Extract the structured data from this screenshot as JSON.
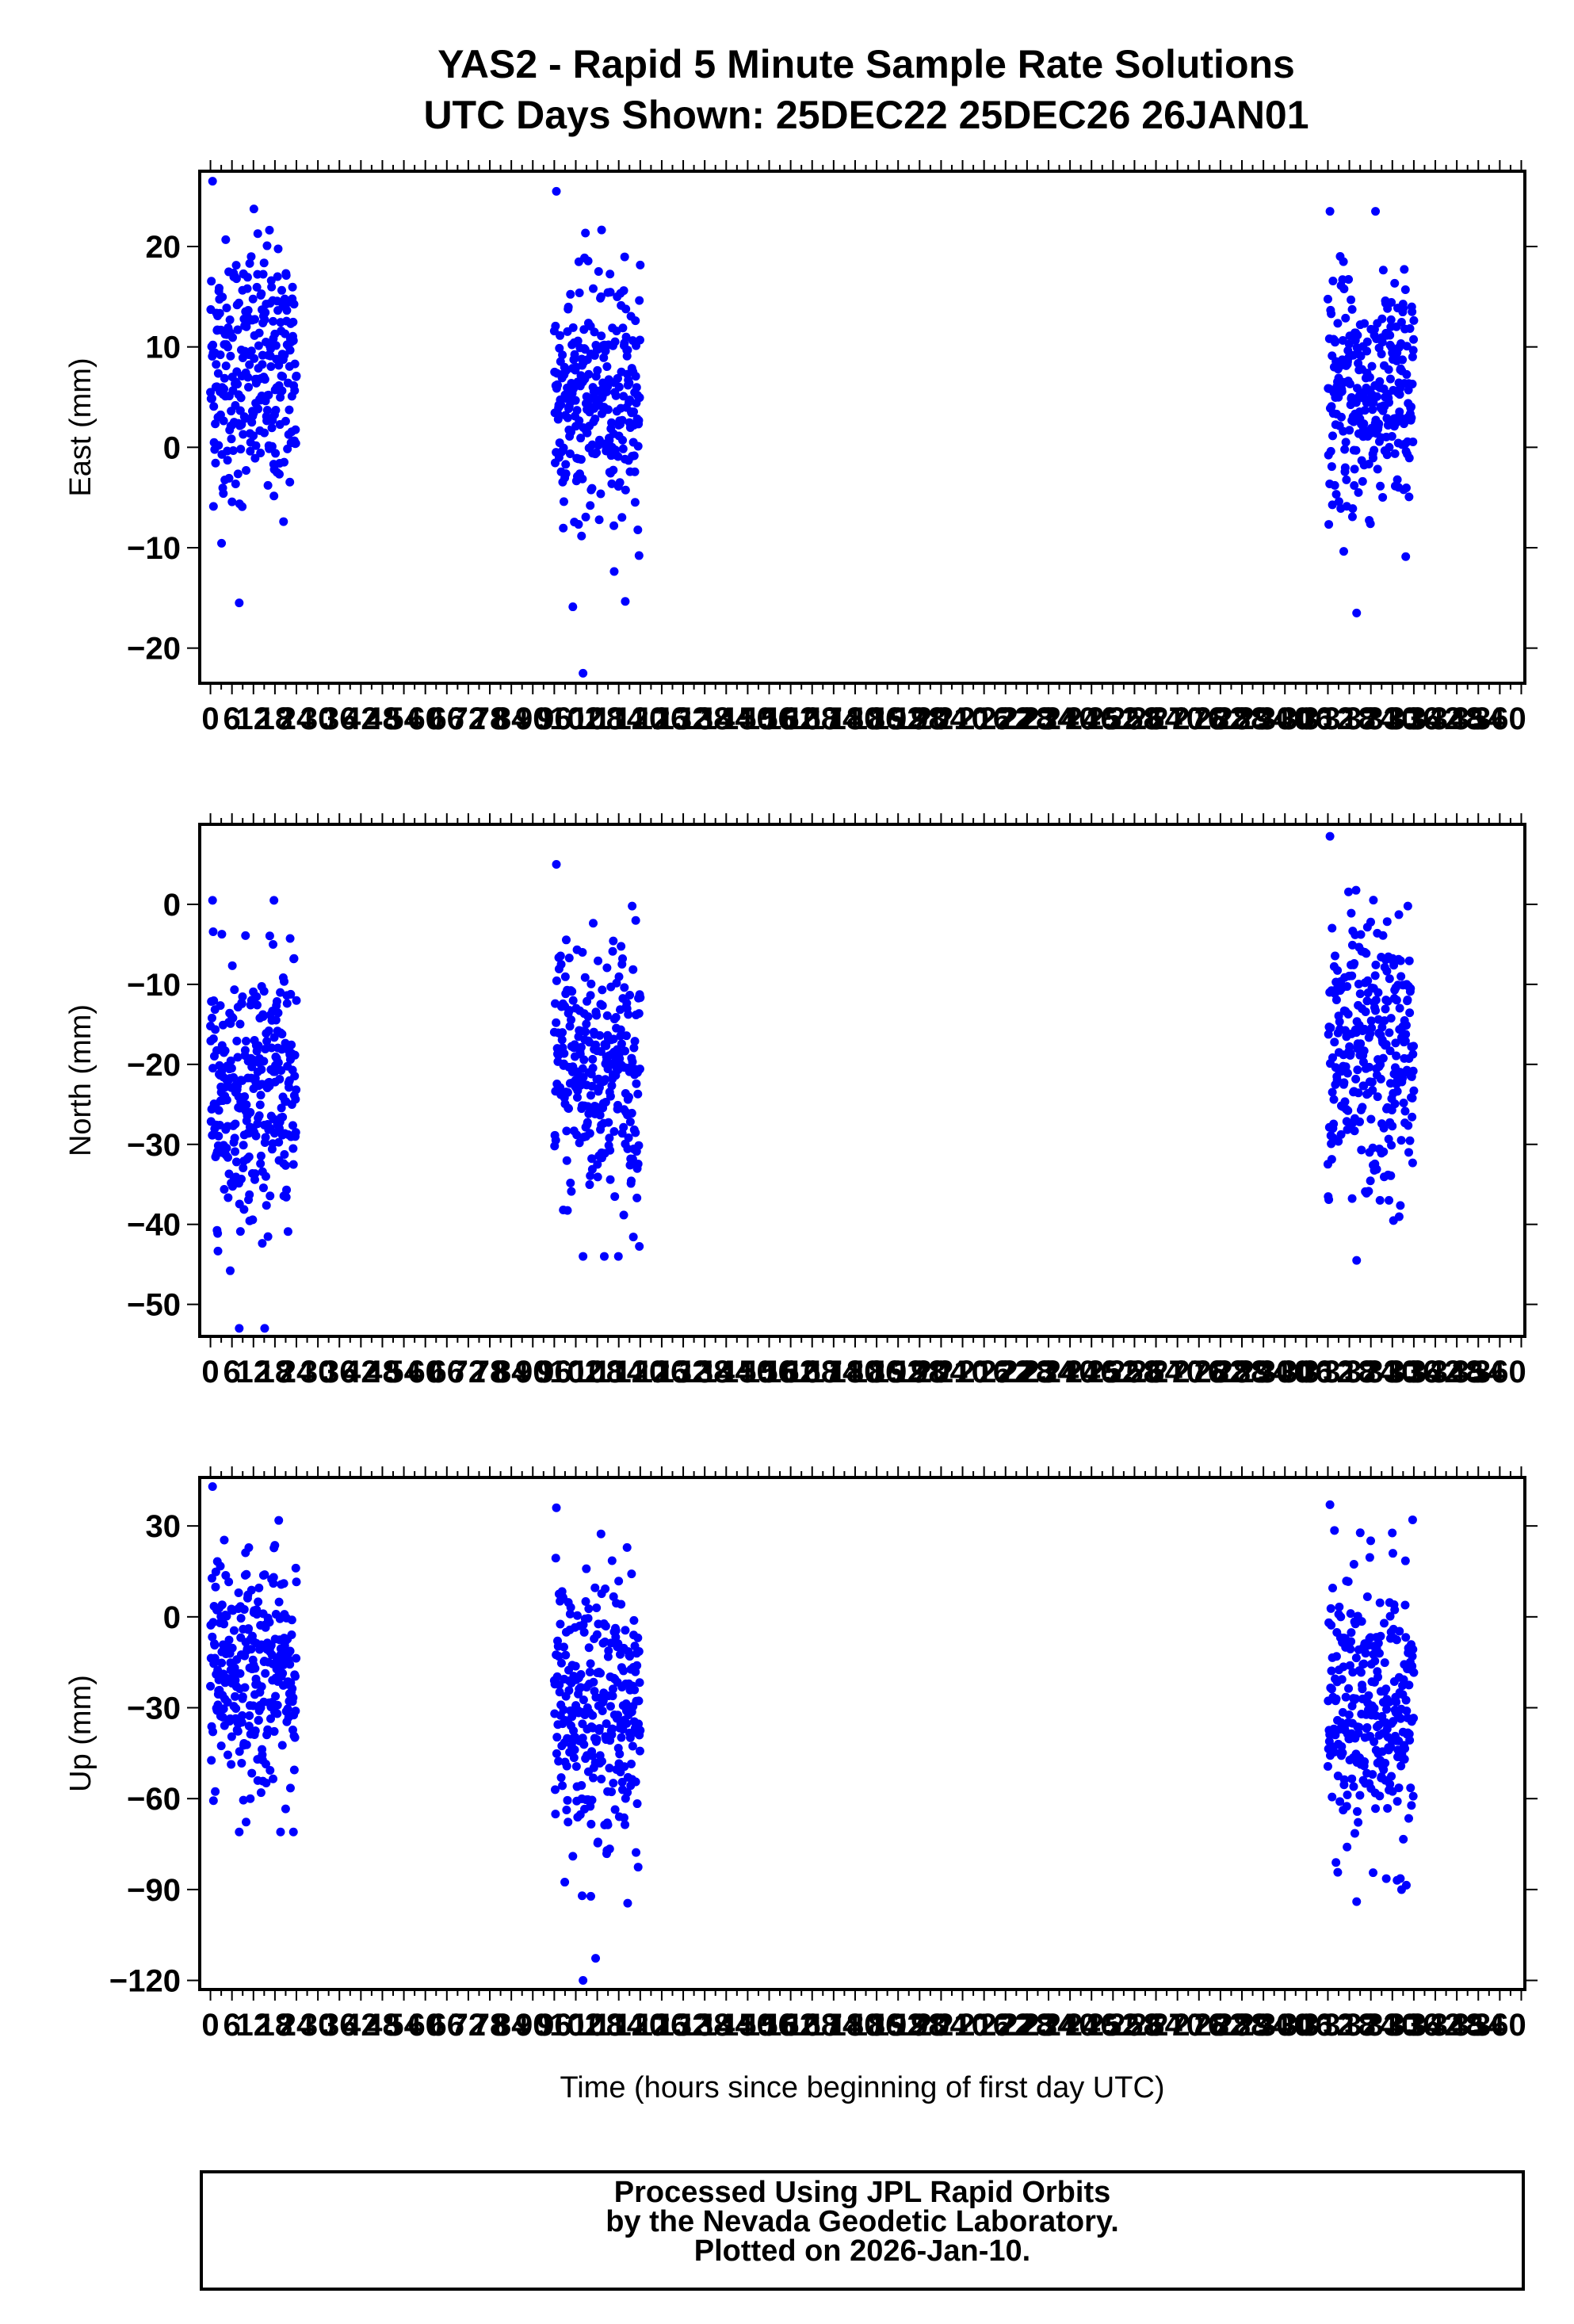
{
  "title": {
    "line1": "YAS2 - Rapid 5 Minute Sample Rate Solutions",
    "line2": "UTC Days Shown:  25DEC22 25DEC26 26JAN01"
  },
  "footer": {
    "line1": "Processed Using JPL Rapid Orbits",
    "line2": "by the Nevada Geodetic Laboratory.",
    "line3": "Plotted on 2026-Jan-10."
  },
  "colors": {
    "points": "#0000ff",
    "axes": "#000000"
  },
  "chart_data": [
    {
      "type": "scatter",
      "name": "East",
      "ylabel": "East (mm)",
      "xlabel": "",
      "xlim": [
        -3,
        367
      ],
      "ylim": [
        -23.5,
        27.5
      ],
      "y_ticks": [
        -20,
        -10,
        0,
        10,
        20
      ],
      "x_ticks": [
        0,
        6,
        12,
        18,
        24,
        30,
        36,
        42,
        48,
        54,
        60,
        66,
        72,
        78,
        84,
        90,
        96,
        102,
        108,
        114,
        120,
        126,
        132,
        138,
        144,
        150,
        156,
        162,
        168,
        174,
        180,
        186,
        192,
        198,
        204,
        210,
        216,
        222,
        228,
        234,
        240,
        246,
        252,
        258,
        264,
        270,
        276,
        282,
        288,
        294,
        300,
        306,
        312,
        318,
        324,
        330,
        336,
        342,
        348,
        354,
        360
      ],
      "x_tick_labels": [
        "0",
        "6",
        "12",
        "18",
        "24",
        "30",
        "36",
        "42",
        "48",
        "54",
        "60",
        "66",
        "72",
        "78",
        "84",
        "90",
        "96",
        "102",
        "108",
        "114",
        "120",
        "126",
        "132",
        "138",
        "144",
        "150",
        "156",
        "162",
        "168",
        "174",
        "180",
        "186",
        "192",
        "198",
        "204",
        "210",
        "216",
        "222",
        "228",
        "234",
        "240",
        "246",
        "252",
        "258",
        "264",
        "270",
        "276",
        "282",
        "288",
        "294",
        "300",
        "306",
        "312",
        "318",
        "324",
        "330",
        "336",
        "342",
        "348",
        "354",
        "360"
      ],
      "clusters": [
        {
          "x_range": [
            0,
            24
          ],
          "center": 7.5,
          "spread": 6.5,
          "count": 288,
          "min": -15.5,
          "max": 26.5
        },
        {
          "x_range": [
            96,
            120
          ],
          "center": 5.0,
          "spread": 6.0,
          "count": 288,
          "min": -22.5,
          "max": 25.5
        },
        {
          "x_range": [
            312,
            336
          ],
          "center": 5.0,
          "spread": 6.0,
          "count": 288,
          "min": -16.5,
          "max": 23.5
        }
      ]
    },
    {
      "type": "scatter",
      "name": "North",
      "ylabel": "North (mm)",
      "xlabel": "",
      "xlim": [
        -3,
        367
      ],
      "ylim": [
        -54,
        10
      ],
      "y_ticks": [
        -50,
        -40,
        -30,
        -20,
        -10,
        0
      ],
      "x_ticks": [
        0,
        6,
        12,
        18,
        24,
        30,
        36,
        42,
        48,
        54,
        60,
        66,
        72,
        78,
        84,
        90,
        96,
        102,
        108,
        114,
        120,
        126,
        132,
        138,
        144,
        150,
        156,
        162,
        168,
        174,
        180,
        186,
        192,
        198,
        204,
        210,
        216,
        222,
        228,
        234,
        240,
        246,
        252,
        258,
        264,
        270,
        276,
        282,
        288,
        294,
        300,
        306,
        312,
        318,
        324,
        330,
        336,
        342,
        348,
        354,
        360
      ],
      "x_tick_labels": [
        "0",
        "6",
        "12",
        "18",
        "24",
        "30",
        "36",
        "42",
        "48",
        "54",
        "60",
        "66",
        "72",
        "78",
        "84",
        "90",
        "96",
        "102",
        "108",
        "114",
        "120",
        "126",
        "132",
        "138",
        "144",
        "150",
        "156",
        "162",
        "168",
        "174",
        "180",
        "186",
        "192",
        "198",
        "204",
        "210",
        "216",
        "222",
        "228",
        "234",
        "240",
        "246",
        "252",
        "258",
        "264",
        "270",
        "276",
        "282",
        "288",
        "294",
        "300",
        "306",
        "312",
        "318",
        "324",
        "330",
        "336",
        "342",
        "348",
        "354",
        "360"
      ],
      "clusters": [
        {
          "x_range": [
            0,
            24
          ],
          "center": -23.0,
          "spread": 8.0,
          "count": 288,
          "min": -53.0,
          "max": 0.5
        },
        {
          "x_range": [
            96,
            120
          ],
          "center": -20.5,
          "spread": 8.5,
          "count": 288,
          "min": -44.0,
          "max": 5.0
        },
        {
          "x_range": [
            312,
            336
          ],
          "center": -19.5,
          "spread": 9.0,
          "count": 288,
          "min": -44.5,
          "max": 8.5
        }
      ]
    },
    {
      "type": "scatter",
      "name": "Up",
      "ylabel": "Up (mm)",
      "xlabel": "Time (hours since beginning of first day UTC)",
      "xlim": [
        -3,
        367
      ],
      "ylim": [
        -123,
        46
      ],
      "y_ticks": [
        -120,
        -90,
        -60,
        -30,
        0,
        30
      ],
      "x_ticks": [
        0,
        6,
        12,
        18,
        24,
        30,
        36,
        42,
        48,
        54,
        60,
        66,
        72,
        78,
        84,
        90,
        96,
        102,
        108,
        114,
        120,
        126,
        132,
        138,
        144,
        150,
        156,
        162,
        168,
        174,
        180,
        186,
        192,
        198,
        204,
        210,
        216,
        222,
        228,
        234,
        240,
        246,
        252,
        258,
        264,
        270,
        276,
        282,
        288,
        294,
        300,
        306,
        312,
        318,
        324,
        330,
        336,
        342,
        348,
        354,
        360
      ],
      "x_tick_labels": [
        "0",
        "6",
        "12",
        "18",
        "24",
        "30",
        "36",
        "42",
        "48",
        "54",
        "60",
        "66",
        "72",
        "78",
        "84",
        "90",
        "96",
        "102",
        "108",
        "114",
        "120",
        "126",
        "132",
        "138",
        "144",
        "150",
        "156",
        "162",
        "168",
        "174",
        "180",
        "186",
        "192",
        "198",
        "204",
        "210",
        "216",
        "222",
        "228",
        "234",
        "240",
        "246",
        "252",
        "258",
        "264",
        "270",
        "276",
        "282",
        "288",
        "294",
        "300",
        "306",
        "312",
        "318",
        "324",
        "330",
        "336",
        "342",
        "348",
        "354",
        "360"
      ],
      "clusters": [
        {
          "x_range": [
            0,
            24
          ],
          "center": -18.0,
          "spread": 19.0,
          "count": 288,
          "min": -71.0,
          "max": 43.0
        },
        {
          "x_range": [
            96,
            120
          ],
          "center": -30.0,
          "spread": 22.0,
          "count": 288,
          "min": -120.0,
          "max": 36.0
        },
        {
          "x_range": [
            312,
            336
          ],
          "center": -32.0,
          "spread": 22.0,
          "count": 288,
          "min": -94.0,
          "max": 37.0
        }
      ]
    }
  ]
}
